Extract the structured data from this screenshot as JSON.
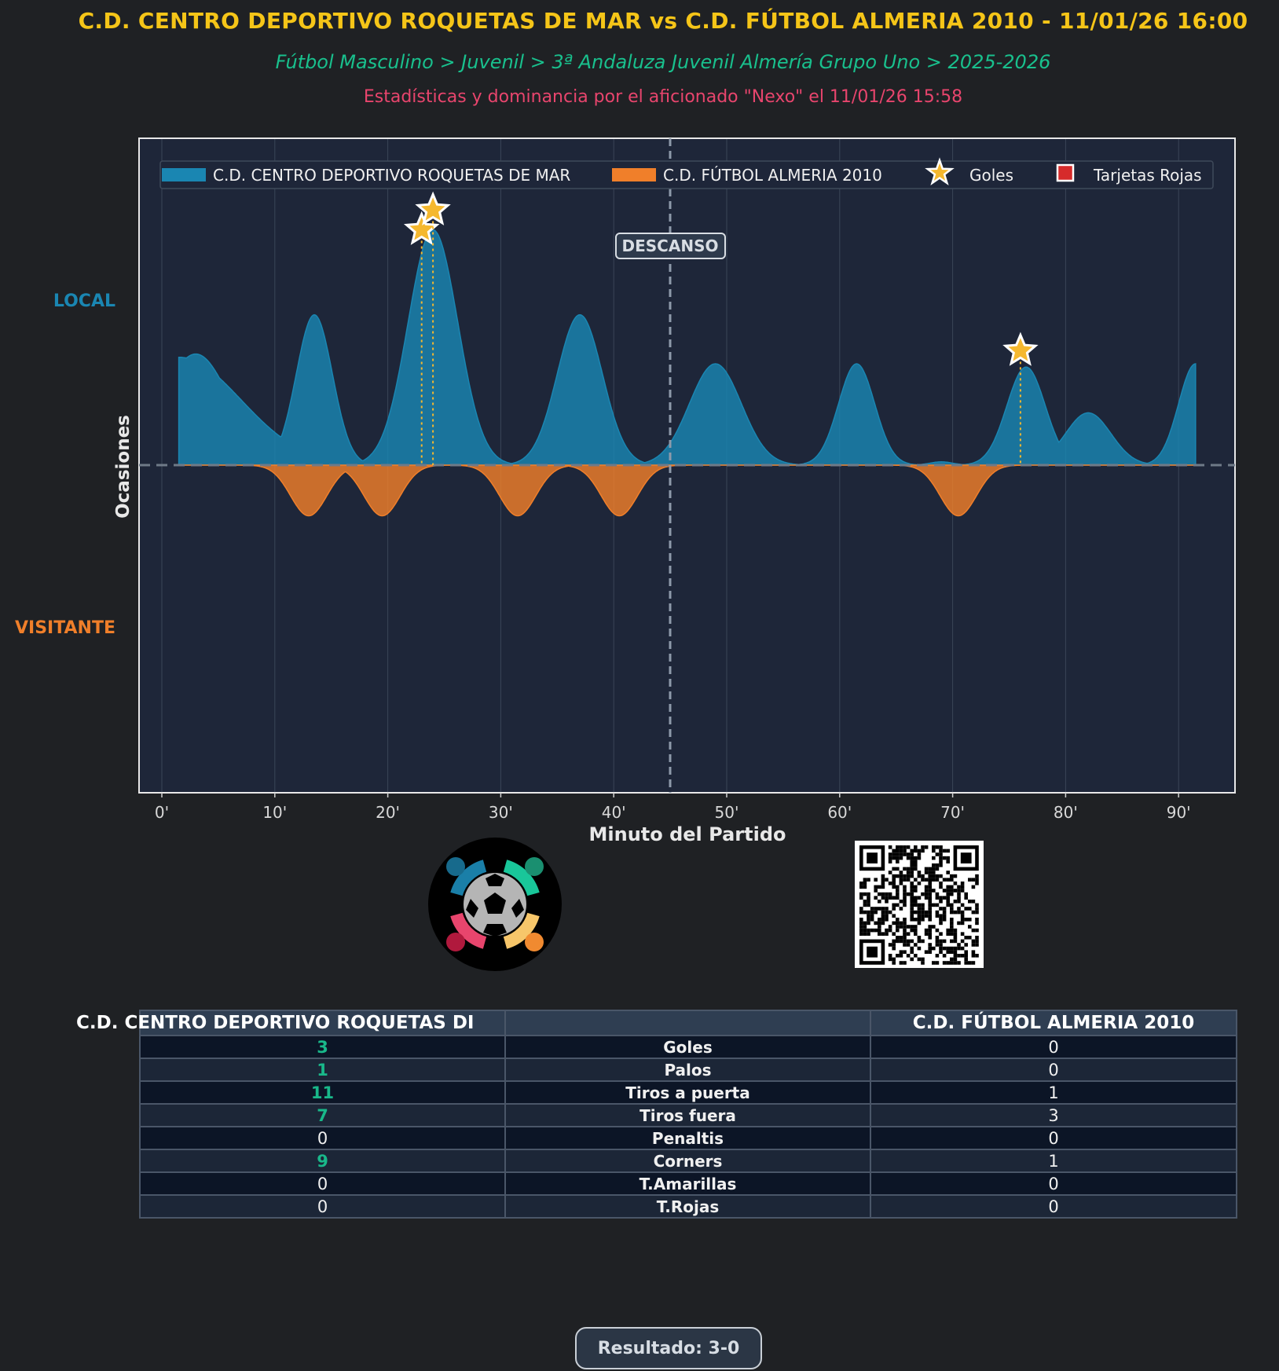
{
  "header": {
    "title": "C.D. CENTRO DEPORTIVO ROQUETAS DE MAR vs C.D. FÚTBOL ALMERIA 2010 - 11/01/26 16:00",
    "breadcrumb": "Fútbol Masculino > Juvenil > 3ª Andaluza Juvenil Almería Grupo Uno > 2025-2026",
    "byline": "Estadísticas y dominancia por el aficionado \"Nexo\" el 11/01/26 15:58"
  },
  "chart_data": {
    "type": "area",
    "xlabel": "Minuto del Partido",
    "ylabel": "Ocasiones",
    "xlim": [
      -2,
      95
    ],
    "ylim": [
      -1,
      1
    ],
    "x_ticks": [
      0,
      10,
      20,
      30,
      40,
      50,
      60,
      70,
      80,
      90
    ],
    "x_tick_labels": [
      "0'",
      "10'",
      "20'",
      "30'",
      "40'",
      "50'",
      "60'",
      "70'",
      "80'",
      "90'"
    ],
    "side_labels": {
      "top": "LOCAL",
      "bottom": "VISITANTE"
    },
    "halftime": {
      "minute": 45,
      "label": "DESCANSO"
    },
    "legend": {
      "home": "C.D. CENTRO DEPORTIVO ROQUETAS DE MAR",
      "away": "C.D. FÚTBOL ALMERIA 2010",
      "goals": "Goles",
      "red_cards": "Tarjetas Rojas"
    },
    "x_range": [
      1.5,
      91.5
    ],
    "series": [
      {
        "name": "C.D. CENTRO DEPORTIVO ROQUETAS DE MAR",
        "side": "home",
        "color": "#1a86b2",
        "baseline_start": 0.33,
        "baseline_end": 0.3,
        "baseline_width": 5.5,
        "peaks": [
          {
            "minute": 3,
            "value": 0.34,
            "width": 3
          },
          {
            "minute": 13.5,
            "value": 0.46,
            "width": 1.6
          },
          {
            "minute": 24,
            "value": 0.72,
            "width": 2.2
          },
          {
            "minute": 37,
            "value": 0.46,
            "width": 2
          },
          {
            "minute": 49,
            "value": 0.31,
            "width": 2.3
          },
          {
            "minute": 61.5,
            "value": 0.31,
            "width": 1.6
          },
          {
            "minute": 69,
            "value": 0.01,
            "width": 1
          },
          {
            "minute": 76.5,
            "value": 0.3,
            "width": 1.7
          },
          {
            "minute": 82,
            "value": 0.16,
            "width": 2
          },
          {
            "minute": 91.5,
            "value": 0.31,
            "width": 1.5
          }
        ]
      },
      {
        "name": "C.D. FÚTBOL ALMERIA 2010",
        "side": "away",
        "color": "#f07f2a",
        "peaks": [
          {
            "minute": 13,
            "value": 0.155,
            "width": 1.6
          },
          {
            "minute": 19.5,
            "value": 0.155,
            "width": 1.6
          },
          {
            "minute": 31.5,
            "value": 0.155,
            "width": 1.6
          },
          {
            "minute": 40.5,
            "value": 0.155,
            "width": 1.6
          },
          {
            "minute": 70.5,
            "value": 0.155,
            "width": 1.6
          }
        ]
      }
    ],
    "goals": [
      {
        "team": "home",
        "minute": 23,
        "value": 0.72
      },
      {
        "team": "home",
        "minute": 24,
        "value": 0.78
      },
      {
        "team": "home",
        "minute": 76,
        "value": 0.35
      }
    ],
    "red_cards": []
  },
  "branding": {
    "logo_icon": "football-community-logo-icon",
    "qr_icon": "qr-code-icon"
  },
  "stats_table": {
    "home_team": "C.D. CENTRO DEPORTIVO ROQUETAS DI",
    "away_team": "C.D. FÚTBOL ALMERIA 2010",
    "rows": [
      {
        "home": "3",
        "metric": "Goles",
        "away": "0",
        "winner": "home"
      },
      {
        "home": "1",
        "metric": "Palos",
        "away": "0",
        "winner": "home"
      },
      {
        "home": "11",
        "metric": "Tiros a puerta",
        "away": "1",
        "winner": "home"
      },
      {
        "home": "7",
        "metric": "Tiros fuera",
        "away": "3",
        "winner": "home"
      },
      {
        "home": "0",
        "metric": "Penaltis",
        "away": "0",
        "winner": ""
      },
      {
        "home": "9",
        "metric": "Corners",
        "away": "1",
        "winner": "home"
      },
      {
        "home": "0",
        "metric": "T.Amarillas",
        "away": "0",
        "winner": ""
      },
      {
        "home": "0",
        "metric": "T.Rojas",
        "away": "0",
        "winner": ""
      }
    ]
  },
  "footer": {
    "result": "Resultado: 3-0"
  }
}
